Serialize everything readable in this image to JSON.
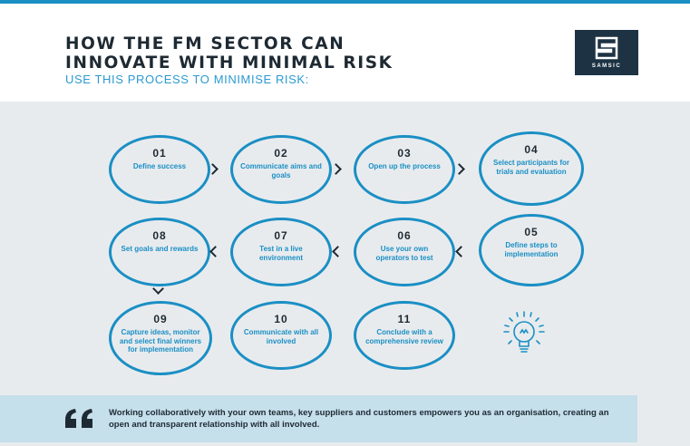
{
  "header": {
    "title_line1": "HOW THE FM SECTOR CAN",
    "title_line2": "INNOVATE WITH MINIMAL RISK",
    "subtitle": "USE THIS PROCESS TO MINIMISE RISK:"
  },
  "logo": {
    "text": "SAMSIC"
  },
  "steps": [
    {
      "number": "01",
      "label": "Define success"
    },
    {
      "number": "02",
      "label": "Communicate aims and goals"
    },
    {
      "number": "03",
      "label": "Open up the process"
    },
    {
      "number": "04",
      "label": "Select participants for trials and evaluation"
    },
    {
      "number": "05",
      "label": "Define steps to implementation"
    },
    {
      "number": "06",
      "label": "Use your own operators to test"
    },
    {
      "number": "07",
      "label": "Test in a live environment"
    },
    {
      "number": "08",
      "label": "Set goals and rewards"
    },
    {
      "number": "09",
      "label": "Capture ideas, monitor and select final winners for implementation"
    },
    {
      "number": "10",
      "label": "Communicate with all involved"
    },
    {
      "number": "11",
      "label": "Conclude with a comprehensive review"
    }
  ],
  "quote": {
    "text": "Working collaboratively with your own teams, key suppliers and customers empowers you as an organisation, creating an open and transparent relationship with all involved."
  },
  "icons": {
    "bulb": "lightbulb-icon",
    "quote": "quote-icon"
  },
  "colors": {
    "accent": "#1a8fc4",
    "dark": "#1e2a33",
    "panel": "#e8ebee",
    "quote_bg": "#c5dfeb"
  }
}
